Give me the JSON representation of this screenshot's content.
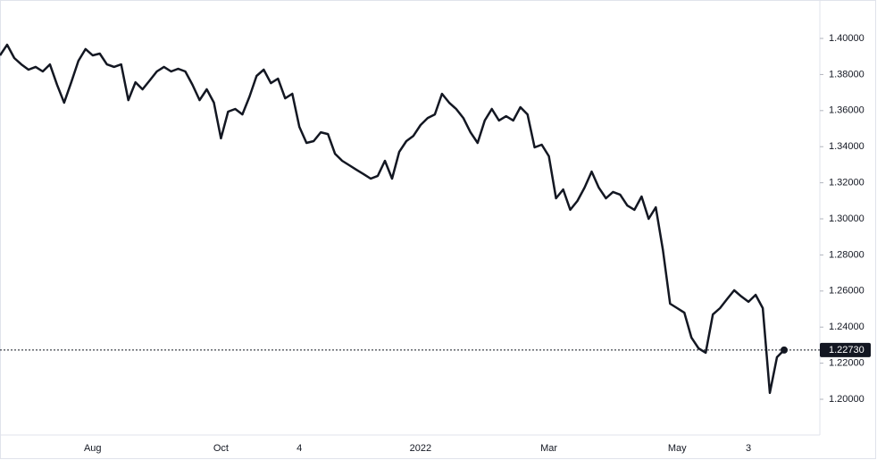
{
  "chart_data": {
    "type": "line",
    "color": "#131722",
    "categories": [
      null,
      null,
      null,
      null,
      null,
      null,
      null,
      null,
      null,
      null,
      null,
      null,
      null,
      "Aug",
      null,
      null,
      null,
      null,
      null,
      null,
      null,
      null,
      null,
      null,
      null,
      null,
      null,
      null,
      null,
      null,
      null,
      "Oct",
      null,
      null,
      null,
      null,
      null,
      null,
      null,
      null,
      null,
      null,
      "4",
      null,
      null,
      null,
      null,
      null,
      null,
      null,
      null,
      null,
      null,
      null,
      null,
      null,
      null,
      null,
      null,
      "2022",
      null,
      null,
      null,
      null,
      null,
      null,
      null,
      null,
      null,
      null,
      null,
      null,
      null,
      null,
      null,
      null,
      null,
      "Mar",
      null,
      null,
      null,
      null,
      null,
      null,
      null,
      null,
      null,
      null,
      null,
      null,
      null,
      null,
      null,
      null,
      null,
      "May",
      null,
      null,
      null,
      null,
      null,
      null,
      null,
      null,
      null,
      "3",
      null,
      null,
      null,
      null,
      null
    ],
    "values": [
      1.3906,
      1.3965,
      1.3891,
      1.3856,
      1.3827,
      1.3842,
      1.3817,
      1.3856,
      1.3743,
      1.3644,
      1.3757,
      1.3876,
      1.3941,
      1.3906,
      1.3916,
      1.3856,
      1.3842,
      1.3856,
      1.3658,
      1.3757,
      1.3718,
      1.3767,
      1.3817,
      1.3842,
      1.3817,
      1.3832,
      1.3817,
      1.3743,
      1.3658,
      1.3718,
      1.3644,
      1.3446,
      1.3594,
      1.3609,
      1.3579,
      1.3678,
      1.3792,
      1.3827,
      1.3752,
      1.3777,
      1.3668,
      1.3693,
      1.351,
      1.3421,
      1.3431,
      1.348,
      1.347,
      1.3361,
      1.3322,
      1.3297,
      1.3272,
      1.3248,
      1.3223,
      1.3238,
      1.3322,
      1.3223,
      1.3371,
      1.3431,
      1.346,
      1.352,
      1.3559,
      1.3579,
      1.3693,
      1.3644,
      1.3609,
      1.3559,
      1.348,
      1.3421,
      1.3545,
      1.3609,
      1.3545,
      1.3569,
      1.3545,
      1.3619,
      1.3579,
      1.3396,
      1.3411,
      1.3347,
      1.3114,
      1.3163,
      1.305,
      1.3099,
      1.3173,
      1.3262,
      1.3173,
      1.3114,
      1.3149,
      1.3134,
      1.3074,
      1.305,
      1.3124,
      1.3,
      1.3064,
      1.2827,
      1.253,
      1.2505,
      1.248,
      1.2342,
      1.2282,
      1.2258,
      1.247,
      1.2505,
      1.2555,
      1.2604,
      1.257,
      1.254,
      1.2579,
      1.2505,
      1.2035,
      1.2233,
      1.2273
    ],
    "ylim": [
      1.1802,
      1.4213
    ],
    "yticks": [
      {
        "value": 1.2,
        "label": "1.20000"
      },
      {
        "value": 1.22,
        "label": "1.22000"
      },
      {
        "value": 1.24,
        "label": "1.24000"
      },
      {
        "value": 1.26,
        "label": "1.26000"
      },
      {
        "value": 1.28,
        "label": "1.28000"
      },
      {
        "value": 1.3,
        "label": "1.30000"
      },
      {
        "value": 1.32,
        "label": "1.32000"
      },
      {
        "value": 1.34,
        "label": "1.34000"
      },
      {
        "value": 1.36,
        "label": "1.36000"
      },
      {
        "value": 1.38,
        "label": "1.38000"
      },
      {
        "value": 1.4,
        "label": "1.40000"
      }
    ],
    "price_line": {
      "value": 1.2273,
      "label": "1.22730"
    }
  }
}
